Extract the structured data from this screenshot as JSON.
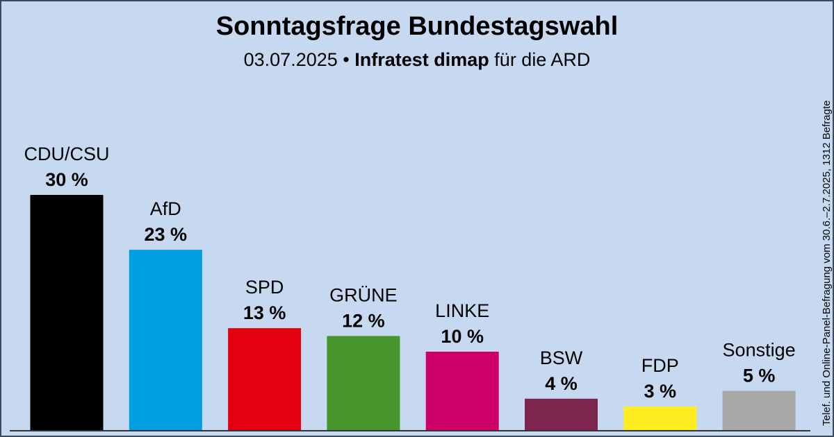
{
  "chart_data": {
    "type": "bar",
    "title": "Sonntagsfrage Bundestagswahl",
    "subtitle": [
      "03.07.2025 •",
      "Infratest dimap",
      "für die ARD"
    ],
    "note": "Telef. und Online-Panel-Befragung vom 30.6.–2.7.2025, 1312 Befragte",
    "categories": [
      "CDU/CSU",
      "AfD",
      "SPD",
      "GRÜNE",
      "LINKE",
      "BSW",
      "FDP",
      "Sonstige"
    ],
    "values": [
      30,
      23,
      13,
      12,
      10,
      4,
      3,
      5
    ],
    "value_labels": [
      "30 %",
      "23 %",
      "13 %",
      "12 %",
      "10 %",
      "4 %",
      "3 %",
      "5 %"
    ],
    "colors": [
      "#000000",
      "#009ee0",
      "#e3000f",
      "#46962b",
      "#cc0066",
      "#7d254f",
      "#ffed22",
      "#a8a8a8"
    ]
  }
}
